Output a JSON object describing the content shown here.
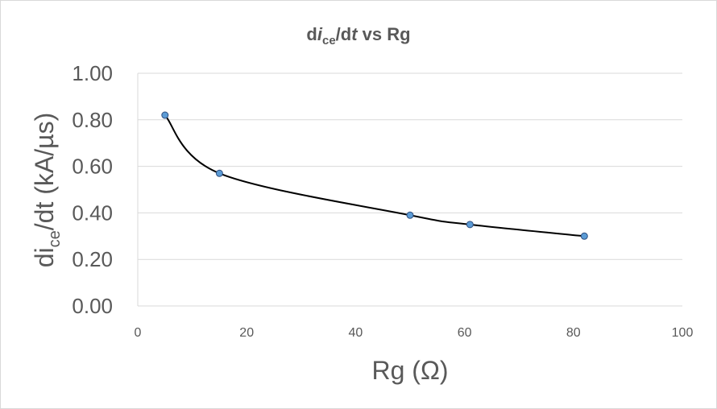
{
  "chart_data": {
    "type": "scatter",
    "title": {
      "prefix": "d",
      "italic": "i",
      "subscript": "ce",
      "suffix": "/d",
      "italic2": "t",
      "tail": " vs Rg"
    },
    "xlabel": "Rg (Ω)",
    "ylabel": {
      "prefix": "di",
      "subscript": "ce",
      "suffix": "/dt (kA/µs)"
    },
    "xlim": [
      0,
      100
    ],
    "ylim": [
      0,
      1.0
    ],
    "x_ticks": [
      0,
      20,
      40,
      60,
      80,
      100
    ],
    "y_ticks": [
      "0.00",
      "0.20",
      "0.40",
      "0.60",
      "0.80",
      "1.00"
    ],
    "grid": "horizontal",
    "smoothed_line": true,
    "series": [
      {
        "x": [
          5,
          15,
          50,
          61,
          82
        ],
        "y": [
          0.82,
          0.57,
          0.39,
          0.35,
          0.3
        ]
      }
    ],
    "colors": {
      "line": "#000000",
      "marker_fill": "#5b9bd5",
      "marker_stroke": "#2f4f7f",
      "grid": "#d9d9d9",
      "text": "#595959"
    }
  }
}
